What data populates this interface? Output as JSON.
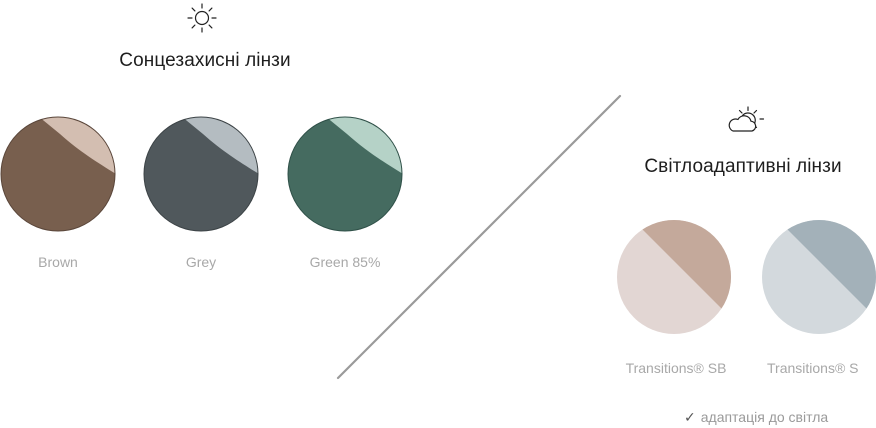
{
  "sunglasses": {
    "icon": "sun-icon",
    "title": "Сонцезахисні лінзи",
    "lenses": [
      {
        "label": "Brown",
        "color": "#785f4e",
        "highlight": "#d8c3b6"
      },
      {
        "label": "Grey",
        "color": "#50585c",
        "highlight": "#b9c2c6"
      },
      {
        "label": "Green 85%",
        "color": "#456b60",
        "highlight": "#bcd8cc"
      }
    ]
  },
  "photochromic": {
    "icon": "sun-cloud-icon",
    "title": "Світлоадаптивні лінзи",
    "lenses": [
      {
        "label": "Transitions® SB",
        "light": "#e2d6d3",
        "dark": "#c4a99b"
      },
      {
        "label": "Transitions® S",
        "light": "#d3d9dd",
        "dark": "#a3b1b9"
      }
    ],
    "note": "адаптація до світла",
    "note_icon": "check-icon"
  },
  "colors": {
    "divider": "#9a9a9a",
    "icon_stroke": "#222222"
  }
}
